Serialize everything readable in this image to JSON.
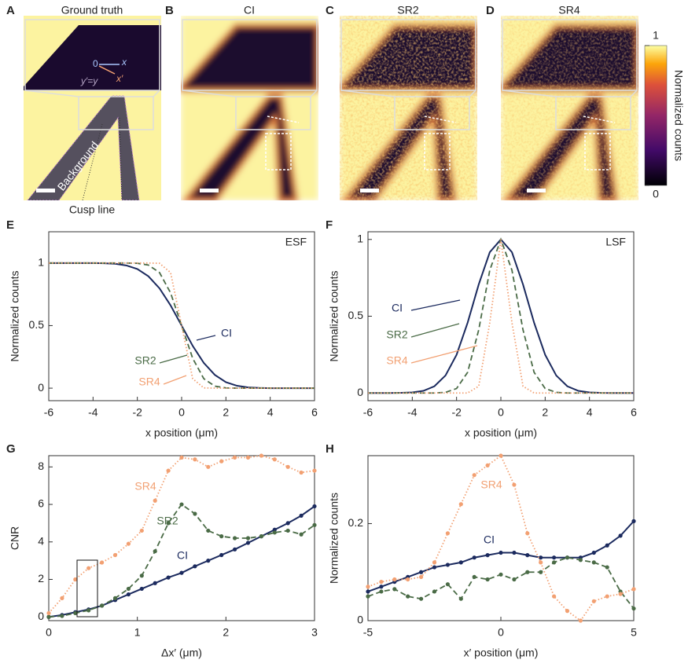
{
  "image_panels": [
    {
      "letter": "A",
      "title": "Ground truth",
      "labels": [
        "Background",
        "Cusp line",
        "0",
        "x",
        "x′",
        "y′=y"
      ]
    },
    {
      "letter": "B",
      "title": "CI"
    },
    {
      "letter": "C",
      "title": "SR2"
    },
    {
      "letter": "D",
      "title": "SR4"
    }
  ],
  "colorbar": {
    "label": "Normalized counts",
    "lim": [
      0,
      1
    ],
    "ticks": [
      0,
      1
    ]
  },
  "chart_data": [
    {
      "type": "line",
      "letter": "E",
      "title": "ESF",
      "x_label": "x position (μm)",
      "y_label": "Normalized counts",
      "xlim": [
        -6,
        6
      ],
      "xticks": [
        -6,
        -4,
        -2,
        0,
        2,
        4,
        6
      ],
      "ylim": [
        -0.1,
        1.25
      ],
      "yticks": [
        0,
        0.5,
        1
      ],
      "x": [
        -6,
        -5.5,
        -5,
        -4.5,
        -4,
        -3.5,
        -3,
        -2.5,
        -2,
        -1.5,
        -1,
        -0.5,
        0,
        0.5,
        1,
        1.5,
        2,
        2.5,
        3,
        3.5,
        4,
        4.5,
        5,
        5.5,
        6
      ],
      "series": [
        {
          "name": "CI",
          "color": "#1b2a5e",
          "style": "solid",
          "markers": false,
          "values": [
            1,
            1,
            1,
            1,
            0.9996,
            0.998,
            0.994,
            0.981,
            0.952,
            0.894,
            0.798,
            0.662,
            0.5,
            0.338,
            0.202,
            0.106,
            0.048,
            0.019,
            0.006,
            0.002,
            0,
            0,
            0,
            0,
            0
          ]
        },
        {
          "name": "SR2",
          "color": "#4a6b46",
          "style": "dashed",
          "markers": false,
          "values": [
            1,
            1,
            1,
            1,
            1,
            1,
            1,
            1,
            0.998,
            0.984,
            0.924,
            0.762,
            0.5,
            0.238,
            0.076,
            0.016,
            0.002,
            0,
            0,
            0,
            0,
            0,
            0,
            0,
            0
          ]
        },
        {
          "name": "SR4",
          "color": "#f2a072",
          "style": "dotted",
          "markers": false,
          "values": [
            1,
            1,
            1,
            1,
            1,
            1,
            1,
            1,
            1,
            1,
            0.998,
            0.924,
            0.5,
            0.076,
            0.002,
            0,
            0,
            0,
            0,
            0,
            0,
            0,
            0,
            0,
            0
          ]
        }
      ]
    },
    {
      "type": "line",
      "letter": "F",
      "title": "LSF",
      "x_label": "x position (μm)",
      "y_label": "Normalized counts",
      "xlim": [
        -6,
        6
      ],
      "xticks": [
        -6,
        -4,
        -2,
        0,
        2,
        4,
        6
      ],
      "ylim": [
        -0.05,
        1.05
      ],
      "yticks": [
        0,
        0.5,
        1
      ],
      "x": [
        -6,
        -5.5,
        -5,
        -4.5,
        -4,
        -3.5,
        -3,
        -2.5,
        -2,
        -1.5,
        -1,
        -0.5,
        0,
        0.5,
        1,
        1.5,
        2,
        2.5,
        3,
        3.5,
        4,
        4.5,
        5,
        5.5,
        6
      ],
      "series": [
        {
          "name": "CI",
          "color": "#1b2a5e",
          "style": "solid",
          "markers": false,
          "values": [
            0,
            0,
            0,
            0.001,
            0.004,
            0.014,
            0.044,
            0.114,
            0.249,
            0.458,
            0.707,
            0.917,
            1,
            0.917,
            0.707,
            0.458,
            0.249,
            0.114,
            0.044,
            0.014,
            0.004,
            0.001,
            0,
            0,
            0
          ]
        },
        {
          "name": "SR2",
          "color": "#4a6b46",
          "style": "dashed",
          "markers": false,
          "values": [
            0,
            0,
            0,
            0,
            0,
            0,
            0,
            0.004,
            0.029,
            0.135,
            0.411,
            0.8,
            1,
            0.8,
            0.411,
            0.135,
            0.029,
            0.004,
            0,
            0,
            0,
            0,
            0,
            0,
            0
          ]
        },
        {
          "name": "SR4",
          "color": "#f2a072",
          "style": "dotted",
          "markers": false,
          "values": [
            0,
            0,
            0,
            0,
            0,
            0,
            0,
            0,
            0,
            0,
            0.044,
            0.458,
            1,
            0.458,
            0.044,
            0,
            0,
            0,
            0,
            0,
            0,
            0,
            0,
            0,
            0
          ]
        }
      ]
    },
    {
      "type": "line",
      "letter": "G",
      "x_label": "Δx′ (μm)",
      "y_label": "CNR",
      "xlim": [
        0,
        3
      ],
      "xticks": [
        0,
        1,
        2,
        3
      ],
      "ylim": [
        -0.2,
        8.6
      ],
      "yticks": [
        0,
        2,
        4,
        6,
        8
      ],
      "x": [
        0,
        0.15,
        0.3,
        0.45,
        0.6,
        0.75,
        0.9,
        1.05,
        1.2,
        1.35,
        1.5,
        1.65,
        1.8,
        1.95,
        2.1,
        2.25,
        2.4,
        2.55,
        2.7,
        2.85,
        3
      ],
      "series": [
        {
          "name": "CI",
          "color": "#1b2a5e",
          "style": "solid",
          "markers": true,
          "values": [
            0,
            0.1,
            0.25,
            0.4,
            0.6,
            0.9,
            1.2,
            1.5,
            1.8,
            2.1,
            2.35,
            2.7,
            3.0,
            3.3,
            3.6,
            3.95,
            4.3,
            4.65,
            5.0,
            5.4,
            5.9
          ]
        },
        {
          "name": "SR2",
          "color": "#4a6b46",
          "style": "dashed",
          "markers": true,
          "values": [
            0,
            0.05,
            0.2,
            0.35,
            0.6,
            1.0,
            1.5,
            2.2,
            3.5,
            5.0,
            6.0,
            5.5,
            4.6,
            4.3,
            4.2,
            4.2,
            4.3,
            4.5,
            4.6,
            4.4,
            4.9
          ]
        },
        {
          "name": "SR4",
          "color": "#f2a072",
          "style": "dotted",
          "markers": true,
          "values": [
            0.2,
            1.0,
            2.0,
            2.6,
            2.9,
            3.3,
            3.9,
            4.6,
            6.2,
            7.8,
            8.5,
            8.4,
            8.0,
            8.3,
            8.5,
            8.5,
            8.6,
            8.4,
            8.0,
            7.7,
            7.8
          ]
        }
      ]
    },
    {
      "type": "line",
      "letter": "H",
      "x_label": "x′ position (μm)",
      "y_label": "Normalized counts",
      "xlim": [
        -5,
        5
      ],
      "xticks": [
        -5,
        0,
        5
      ],
      "ylim": [
        0,
        0.34
      ],
      "yticks": [
        0,
        0.2
      ],
      "x": [
        -5,
        -4.5,
        -4,
        -3.5,
        -3,
        -2.5,
        -2,
        -1.5,
        -1,
        -0.5,
        0,
        0.5,
        1,
        1.5,
        2,
        2.5,
        3,
        3.5,
        4,
        4.5,
        5
      ],
      "series": [
        {
          "name": "CI",
          "color": "#1b2a5e",
          "style": "solid",
          "markers": true,
          "values": [
            0.06,
            0.07,
            0.08,
            0.09,
            0.1,
            0.11,
            0.115,
            0.12,
            0.13,
            0.135,
            0.14,
            0.14,
            0.135,
            0.13,
            0.13,
            0.13,
            0.13,
            0.14,
            0.155,
            0.175,
            0.205
          ]
        },
        {
          "name": "SR2",
          "color": "#4a6b46",
          "style": "dashed",
          "markers": true,
          "values": [
            0.05,
            0.06,
            0.065,
            0.05,
            0.045,
            0.06,
            0.075,
            0.045,
            0.09,
            0.085,
            0.095,
            0.085,
            0.1,
            0.1,
            0.12,
            0.13,
            0.125,
            0.12,
            0.11,
            0.06,
            0.025
          ]
        },
        {
          "name": "SR4",
          "color": "#f2a072",
          "style": "dotted",
          "markers": true,
          "values": [
            0.07,
            0.08,
            0.085,
            0.085,
            0.09,
            0.12,
            0.18,
            0.24,
            0.3,
            0.32,
            0.34,
            0.28,
            0.18,
            0.12,
            0.05,
            0.02,
            0,
            0.04,
            0.05,
            0.055,
            0.065
          ]
        }
      ]
    }
  ]
}
